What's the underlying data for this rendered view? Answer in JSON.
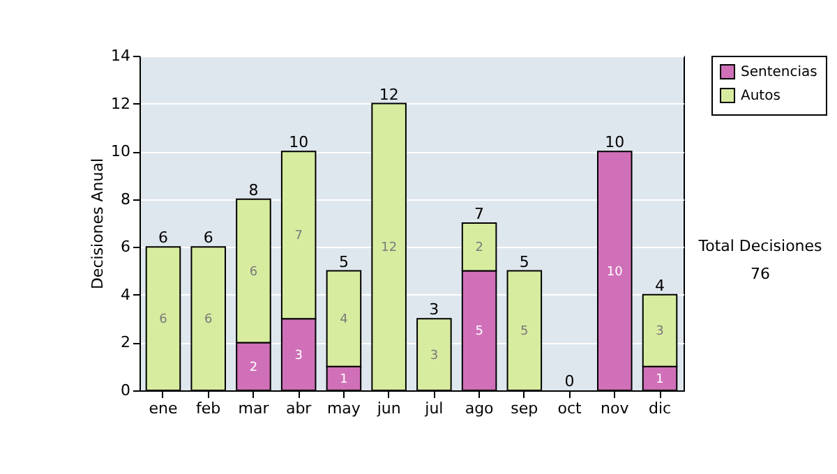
{
  "chart_data": {
    "type": "bar",
    "stacked": true,
    "ylabel": "Decisiones Anual",
    "categories": [
      "ene",
      "feb",
      "mar",
      "abr",
      "may",
      "jun",
      "jul",
      "ago",
      "sep",
      "oct",
      "nov",
      "dic"
    ],
    "series": [
      {
        "name": "Sentencias",
        "color": "#d070b8",
        "values": [
          0,
          0,
          2,
          3,
          1,
          0,
          0,
          5,
          0,
          0,
          10,
          1
        ],
        "value_labels": [
          null,
          null,
          "2",
          "3",
          "1",
          null,
          null,
          "5",
          null,
          null,
          "10",
          "1"
        ]
      },
      {
        "name": "Autos",
        "color": "#d8eca0",
        "values": [
          6,
          6,
          6,
          7,
          4,
          12,
          3,
          2,
          5,
          0,
          0,
          3
        ],
        "value_labels": [
          "6",
          "6",
          "6",
          "7",
          "4",
          "12",
          "3",
          "2",
          "5",
          null,
          null,
          "3"
        ]
      }
    ],
    "totals": [
      "6",
      "6",
      "8",
      "10",
      "5",
      "12",
      "3",
      "7",
      "5",
      "0",
      "10",
      "4"
    ],
    "ylim": [
      0,
      14
    ],
    "yticks": [
      0,
      2,
      4,
      6,
      8,
      10,
      12,
      14
    ],
    "grid": "y",
    "legend": "right",
    "annotations": [
      "Total Decisiones",
      "76"
    ]
  }
}
